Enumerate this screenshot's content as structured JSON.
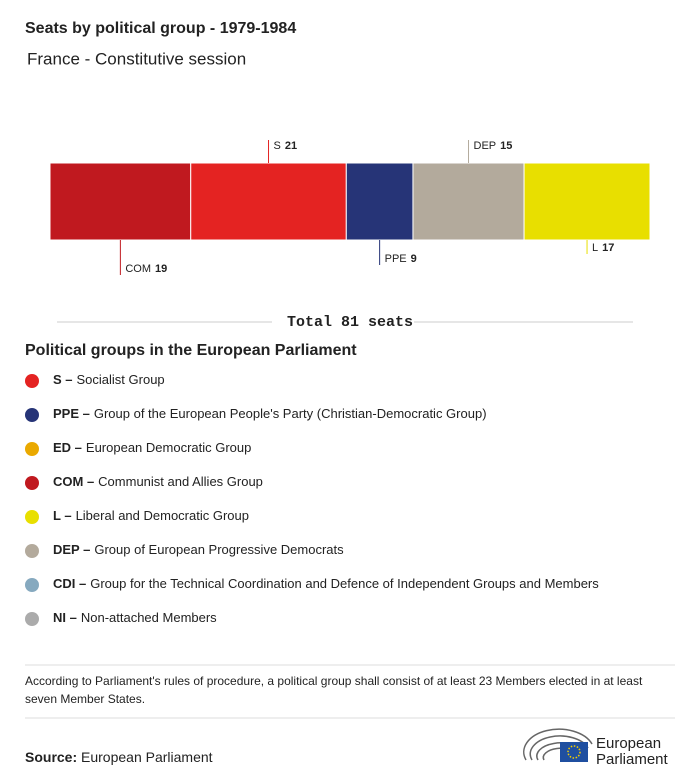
{
  "chart_data": {
    "type": "stacked-bar",
    "title": "Seats by political group - 1979-1984",
    "subtitle": "France - Constitutive session",
    "categories": [
      "COM",
      "S",
      "PPE",
      "DEP",
      "L"
    ],
    "values": [
      19,
      21,
      9,
      15,
      17
    ],
    "colors": [
      "#c0191f",
      "#e42322",
      "#263477",
      "#b3aa9c",
      "#e8df00"
    ],
    "total": 81,
    "total_label": "Total 81 seats"
  },
  "legend": {
    "title": "Political groups in the European Parliament",
    "items": [
      {
        "code": "S –",
        "text": "Socialist Group",
        "color": "#e42322"
      },
      {
        "code": "PPE –",
        "text": "Group of the European People's Party (Christian-Democratic Group)",
        "color": "#263477"
      },
      {
        "code": "ED –",
        "text": "European Democratic Group",
        "color": "#eaa900"
      },
      {
        "code": "COM –",
        "text": "Communist and Allies Group",
        "color": "#c0191f"
      },
      {
        "code": "L –",
        "text": "Liberal and Democratic Group",
        "color": "#e8df00"
      },
      {
        "code": "DEP –",
        "text": "Group of European Progressive Democrats",
        "color": "#b3aa9c"
      },
      {
        "code": "CDI –",
        "text": "Group for the Technical Coordination and Defence of Independent Groups and Members",
        "color": "#86a9bf"
      },
      {
        "code": "NI –",
        "text": "Non-attached Members",
        "color": "#ababab"
      }
    ]
  },
  "footnote": "According to Parliament's rules of procedure, a political group shall consist of at least 23 Members elected in at least seven Member States.",
  "source": {
    "label": "Source:",
    "text": "European Parliament"
  },
  "logo": [
    "European",
    "Parliament"
  ]
}
